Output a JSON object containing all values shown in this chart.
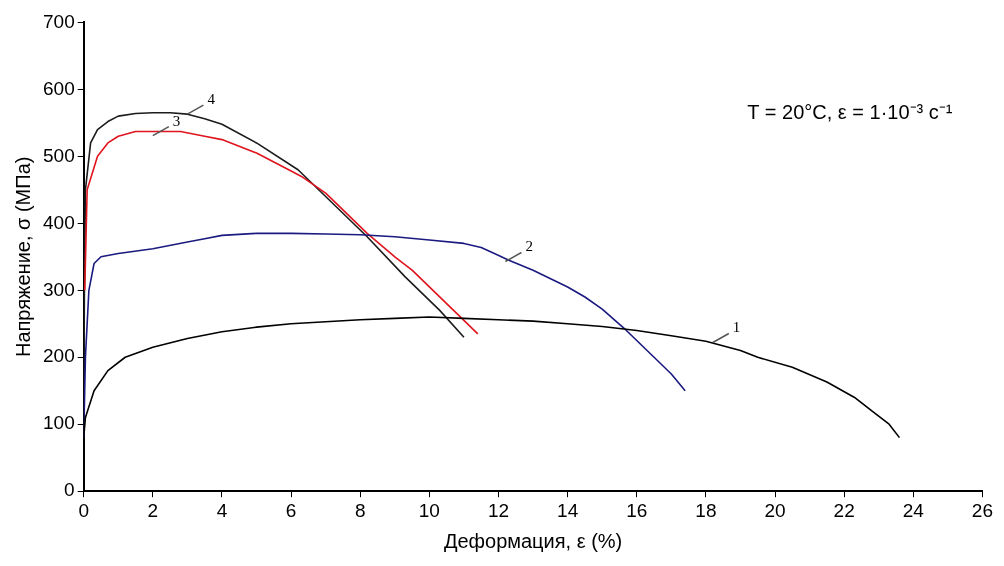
{
  "chart_data": {
    "type": "line",
    "xlabel": "Деформация, ε (%)",
    "ylabel": "Напряжение, σ (МПа)",
    "xlim": [
      0,
      26
    ],
    "ylim": [
      0,
      700
    ],
    "xticks": [
      0,
      2,
      4,
      6,
      8,
      10,
      12,
      14,
      16,
      18,
      20,
      22,
      24,
      26
    ],
    "yticks": [
      0,
      100,
      200,
      300,
      400,
      500,
      600,
      700
    ],
    "grid": false,
    "legend": false,
    "marker": "none",
    "line_style": "solid",
    "series": [
      {
        "color": "#000000",
        "x": [
          0,
          0.05,
          0.3,
          0.7,
          1.2,
          2,
          3,
          4,
          5,
          6,
          7,
          8,
          9,
          10,
          11,
          12,
          13,
          14,
          15,
          16,
          17,
          18,
          19,
          19.5,
          20.5,
          21.5,
          22.3,
          22.8,
          23.3,
          23.6
        ],
        "values": [
          80,
          110,
          150,
          180,
          200,
          215,
          228,
          238,
          245,
          250,
          253,
          256,
          258,
          260,
          258,
          256,
          254,
          250,
          246,
          240,
          232,
          224,
          210,
          200,
          185,
          163,
          140,
          120,
          100,
          80
        ]
      },
      {
        "color": "#1a1a80",
        "x": [
          0,
          0.05,
          0.15,
          0.3,
          0.5,
          1,
          2,
          3,
          3.5,
          4,
          5,
          6,
          7,
          8,
          9,
          10,
          11,
          11.5,
          12.3,
          13,
          14,
          14.5,
          15,
          15.7,
          16.5,
          17,
          17.4
        ],
        "values": [
          80,
          200,
          300,
          340,
          350,
          355,
          362,
          372,
          377,
          382,
          385,
          385,
          384,
          383,
          380,
          375,
          370,
          364,
          345,
          330,
          305,
          290,
          272,
          240,
          200,
          175,
          150
        ]
      },
      {
        "color": "#e0141e",
        "x": [
          0.03,
          0.1,
          0.4,
          0.7,
          1,
          1.5,
          2,
          2.8,
          3.5,
          4,
          5,
          6,
          6.3,
          7,
          7.5,
          8.2,
          9,
          9.5,
          10,
          10.5,
          11,
          11.4
        ],
        "values": [
          300,
          450,
          500,
          520,
          530,
          537,
          537,
          537,
          530,
          525,
          505,
          478,
          470,
          445,
          420,
          385,
          350,
          330,
          305,
          280,
          255,
          235
        ]
      },
      {
        "color": "#1c1c1c",
        "x": [
          0,
          0.02,
          0.05,
          0.2,
          0.4,
          0.7,
          1,
          1.5,
          2,
          2.5,
          3,
          3.5,
          4,
          5,
          6.2,
          7,
          7.7,
          8.2,
          9.3,
          10.3,
          11
        ],
        "values": [
          80,
          300,
          450,
          520,
          540,
          552,
          560,
          564,
          565,
          565,
          563,
          556,
          548,
          520,
          480,
          440,
          405,
          380,
          320,
          270,
          230
        ]
      }
    ],
    "annotations": [
      "T = 20°C, ε = 1·10⁻³ с⁻¹",
      {
        "text": "1",
        "x": 18.2,
        "y": 222
      },
      {
        "text": "2",
        "x": 12.2,
        "y": 343
      },
      {
        "text": "3",
        "x": 2.0,
        "y": 531
      },
      {
        "text": "4",
        "x": 3.0,
        "y": 563
      }
    ]
  }
}
